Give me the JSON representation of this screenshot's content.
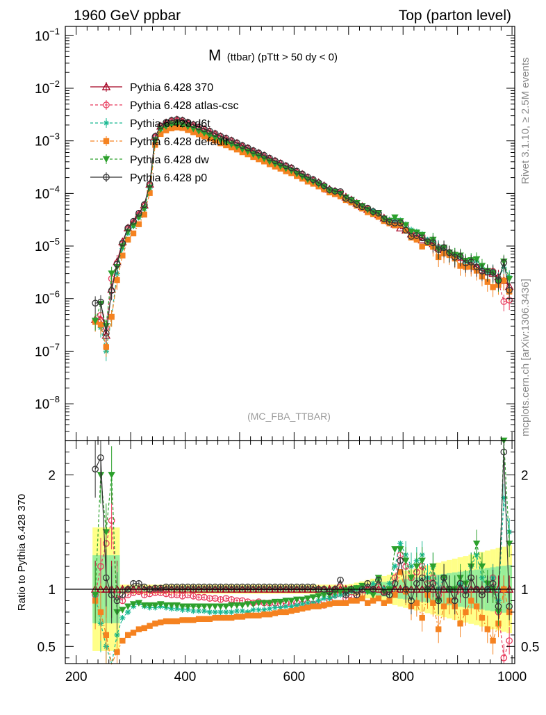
{
  "header": {
    "left": "1960 GeV ppbar",
    "right": "Top (parton level)"
  },
  "side_labels": {
    "rivet": "Rivet 3.1.10, ≥ 2.5M events",
    "mcplots": "mcplots.cern.ch [arXiv:1306.3436]"
  },
  "chart_data": {
    "type": "line",
    "title_main": "M",
    "title_sub": "(ttbar) (pTtt > 50 dy < 0)",
    "watermark": "(MC_FBA_TTBAR)",
    "x_range": [
      180,
      1005
    ],
    "x_ticks": [
      200,
      400,
      600,
      800,
      1000
    ],
    "top_panel": {
      "y_scale": "log",
      "y_range": [
        2e-09,
        0.15
      ],
      "y_tick_labels": [
        {
          "base": "10",
          "exp": "−1",
          "value": 0.1
        },
        {
          "base": "10",
          "exp": "−2",
          "value": 0.01
        },
        {
          "base": "10",
          "exp": "−3",
          "value": 0.001
        },
        {
          "base": "10",
          "exp": "−4",
          "value": 0.0001
        },
        {
          "base": "10",
          "exp": "−5",
          "value": 1e-05
        },
        {
          "base": "10",
          "exp": "−6",
          "value": 1e-06
        },
        {
          "base": "10",
          "exp": "−7",
          "value": 1e-07
        },
        {
          "base": "10",
          "exp": "−8",
          "value": 1e-08
        }
      ]
    },
    "ratio_panel": {
      "y_label": "Ratio to Pythia 6.428 370",
      "y_range": [
        0.35,
        2.3
      ],
      "y_ticks": [
        0.5,
        1,
        2
      ],
      "y_tick_labels": [
        "0.5",
        "1",
        "2"
      ]
    },
    "reference_x": [
      235,
      245,
      255,
      265,
      275,
      285,
      295,
      305,
      315,
      325,
      335,
      345,
      355,
      365,
      375,
      385,
      395,
      405,
      415,
      425,
      435,
      445,
      455,
      465,
      475,
      485,
      495,
      505,
      515,
      525,
      535,
      545,
      555,
      565,
      575,
      585,
      595,
      605,
      615,
      625,
      635,
      645,
      655,
      665,
      675,
      685,
      695,
      705,
      715,
      725,
      735,
      745,
      755,
      765,
      775,
      785,
      795,
      805,
      815,
      825,
      835,
      845,
      855,
      865,
      875,
      885,
      895,
      905,
      915,
      925,
      935,
      945,
      955,
      965,
      975,
      985,
      995
    ],
    "reference_y": [
      4e-07,
      4e-07,
      2e-07,
      1.5e-06,
      5e-06,
      1.2e-05,
      2.2e-05,
      2.8e-05,
      4e-05,
      6e-05,
      0.00015,
      0.0012,
      0.0019,
      0.0022,
      0.0024,
      0.0025,
      0.0024,
      0.0022,
      0.002,
      0.0018,
      0.00165,
      0.0015,
      0.00135,
      0.0012,
      0.0011,
      0.001,
      0.0009,
      0.0008,
      0.00072,
      0.00064,
      0.00058,
      0.00052,
      0.00046,
      0.00041,
      0.00037,
      0.00033,
      0.0003,
      0.00026,
      0.00023,
      0.0002,
      0.00018,
      0.00016,
      0.00014,
      0.00012,
      0.00011,
      0.0001,
      8.5e-05,
      7.5e-05,
      6.5e-05,
      5.6e-05,
      5e-05,
      4.5e-05,
      3.9e-05,
      3.4e-05,
      3e-05,
      2.6e-05,
      2.2e-05,
      2e-05,
      1.7e-05,
      1.5e-05,
      1.3e-05,
      1.2e-05,
      1.1e-05,
      9.5e-06,
      8.5e-06,
      7.5e-06,
      6.8e-06,
      6e-06,
      5e-06,
      4.5e-06,
      4e-06,
      3.5e-06,
      3.2e-06,
      3e-06,
      2.6e-06,
      2.2e-06,
      1.7e-06
    ],
    "series": [
      {
        "name": "Pythia 6.428 370",
        "color": "#a50021",
        "marker": "open-triangle",
        "dash": "solid",
        "ratio": [
          1,
          1,
          1,
          1,
          1,
          1,
          1,
          1,
          1,
          1,
          1,
          1,
          1,
          1,
          1,
          1,
          1,
          1,
          1,
          1,
          1,
          1,
          1,
          1,
          1,
          1,
          1,
          1,
          1,
          1,
          1,
          1,
          1,
          1,
          1,
          1,
          1,
          1,
          1,
          1,
          1,
          1,
          1,
          1,
          1,
          1,
          1,
          1,
          1,
          1,
          1,
          1,
          1,
          1,
          1,
          1,
          1,
          1,
          1,
          1,
          1,
          1,
          1,
          1,
          1,
          1,
          1,
          1,
          1,
          1,
          1,
          1,
          1,
          1,
          1,
          1,
          1
        ]
      },
      {
        "name": "Pythia 6.428 atlas-csc",
        "color": "#e8385a",
        "marker": "open-circle",
        "dash": "4,3",
        "ratio": [
          0.95,
          1.2,
          1.4,
          1.6,
          0.95,
          0.9,
          0.95,
          0.97,
          0.98,
          0.95,
          0.96,
          0.97,
          0.97,
          0.96,
          0.95,
          0.95,
          0.94,
          0.95,
          0.94,
          0.93,
          0.93,
          0.92,
          0.92,
          0.91,
          0.92,
          0.91,
          0.9,
          0.9,
          0.89,
          0.88,
          0.89,
          0.88,
          0.88,
          0.88,
          0.87,
          0.88,
          0.87,
          0.88,
          0.87,
          0.88,
          0.87,
          0.88,
          0.86,
          0.9,
          0.95,
          1.02,
          0.92,
          0.93,
          0.95,
          0.96,
          1.0,
          0.98,
          1.02,
          0.98,
          0.95,
          1.1,
          1.3,
          1.2,
          1.1,
          1.15,
          1.2,
          1.05,
          1.1,
          0.95,
          1.1,
          1.0,
          0.9,
          1.0,
          0.95,
          1.1,
          1.0,
          0.95,
          1.0,
          1.1,
          0.8,
          0.4,
          0.55
        ]
      },
      {
        "name": "Pythia 6.428 d6t",
        "color": "#17b890",
        "marker": "star",
        "dash": "4,3",
        "ratio": [
          0.95,
          0.7,
          0.5,
          0.3,
          0.6,
          0.75,
          0.8,
          0.85,
          0.88,
          0.85,
          0.84,
          0.84,
          0.85,
          0.84,
          0.83,
          0.83,
          0.82,
          0.82,
          0.81,
          0.81,
          0.81,
          0.8,
          0.8,
          0.8,
          0.8,
          0.8,
          0.81,
          0.81,
          0.8,
          0.82,
          0.82,
          0.82,
          0.83,
          0.84,
          0.84,
          0.85,
          0.85,
          0.86,
          0.87,
          0.88,
          0.88,
          0.9,
          0.92,
          0.92,
          0.94,
          0.95,
          0.96,
          0.98,
          1.0,
          1.02,
          0.98,
          1.05,
          1.1,
          1.0,
          1.05,
          1.2,
          1.4,
          1.3,
          1.2,
          1.25,
          1.3,
          1.1,
          1.2,
          1.0,
          1.1,
          1.0,
          1.0,
          1.05,
          1.0,
          1.2,
          1.3,
          1.1,
          1.0,
          1.1,
          0.9,
          1.8,
          1.5
        ]
      },
      {
        "name": "Pythia 6.428 default",
        "color": "#f58220",
        "marker": "filled-square",
        "dash": "6,3,2,3",
        "ratio": [
          0.9,
          0.8,
          0.6,
          0.3,
          0.45,
          0.55,
          0.6,
          0.62,
          0.65,
          0.66,
          0.68,
          0.7,
          0.71,
          0.72,
          0.72,
          0.72,
          0.73,
          0.73,
          0.73,
          0.74,
          0.74,
          0.74,
          0.75,
          0.75,
          0.75,
          0.75,
          0.76,
          0.76,
          0.77,
          0.77,
          0.77,
          0.78,
          0.78,
          0.79,
          0.8,
          0.8,
          0.81,
          0.82,
          0.83,
          0.84,
          0.85,
          0.85,
          0.86,
          0.87,
          0.88,
          0.88,
          0.88,
          0.9,
          0.9,
          0.92,
          0.88,
          0.9,
          0.92,
          0.88,
          0.9,
          0.95,
          1.15,
          0.98,
          0.85,
          0.88,
          0.75,
          0.95,
          0.88,
          0.65,
          0.85,
          0.9,
          0.85,
          0.7,
          0.8,
          0.9,
          0.85,
          0.75,
          0.65,
          0.55,
          0.7,
          1.0,
          0.8
        ]
      },
      {
        "name": "Pythia 6.428 dw",
        "color": "#2ca02c",
        "marker": "filled-triangle-down",
        "dash": "4,3",
        "ratio": [
          0.95,
          2.0,
          1.5,
          2.0,
          0.8,
          0.82,
          0.85,
          0.87,
          0.88,
          0.86,
          0.86,
          0.86,
          0.87,
          0.86,
          0.86,
          0.86,
          0.85,
          0.85,
          0.85,
          0.85,
          0.85,
          0.85,
          0.85,
          0.85,
          0.85,
          0.86,
          0.86,
          0.86,
          0.87,
          0.87,
          0.88,
          0.88,
          0.88,
          0.89,
          0.89,
          0.9,
          0.9,
          0.91,
          0.91,
          0.92,
          0.93,
          0.94,
          0.95,
          0.95,
          0.97,
          0.98,
          0.99,
          1.0,
          1.01,
          1.03,
          0.98,
          0.95,
          1.1,
          0.98,
          1.0,
          1.35,
          1.35,
          1.25,
          1.1,
          1.2,
          1.25,
          1.0,
          1.2,
          0.9,
          1.1,
          1.0,
          1.0,
          1.1,
          1.05,
          1.2,
          1.4,
          1.2,
          1.05,
          1.0,
          0.8,
          2.3,
          1.4
        ]
      },
      {
        "name": "Pythia 6.428 p0",
        "color": "#333333",
        "marker": "open-circle",
        "dash": "solid",
        "ratio": [
          2.05,
          2.15,
          1.1,
          0.95,
          0.9,
          0.95,
          1.0,
          1.05,
          1.05,
          1.02,
          1.0,
          1.01,
          1.01,
          1.02,
          1.02,
          1.02,
          1.02,
          1.02,
          1.02,
          1.02,
          1.02,
          1.02,
          1.02,
          1.02,
          1.02,
          1.02,
          1.02,
          1.02,
          1.02,
          1.02,
          1.02,
          1.02,
          1.02,
          1.02,
          1.02,
          1.02,
          1.02,
          1.02,
          1.02,
          1.02,
          1.02,
          1.0,
          1.0,
          0.98,
          1.0,
          1.08,
          0.95,
          1.0,
          0.95,
          1.0,
          1.05,
          1.0,
          1.08,
          0.97,
          0.95,
          1.05,
          1.25,
          1.0,
          0.9,
          1.05,
          1.1,
          1.0,
          1.05,
          0.9,
          1.1,
          1.0,
          0.9,
          1.05,
          0.95,
          1.1,
          1.0,
          0.95,
          1.0,
          1.05,
          0.85,
          2.2,
          0.85
        ]
      }
    ]
  }
}
